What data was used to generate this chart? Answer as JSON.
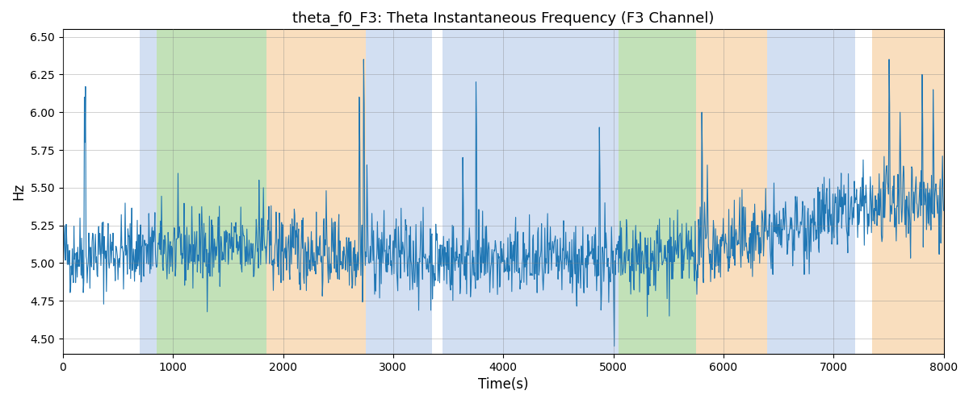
{
  "title": "theta_f0_F3: Theta Instantaneous Frequency (F3 Channel)",
  "xlabel": "Time(s)",
  "ylabel": "Hz",
  "xlim": [
    0,
    8000
  ],
  "ylim": [
    4.4,
    6.55
  ],
  "yticks": [
    4.5,
    4.75,
    5.0,
    5.25,
    5.5,
    5.75,
    6.0,
    6.25,
    6.5
  ],
  "line_color": "#2077b4",
  "line_width": 0.8,
  "background_color": "#ffffff",
  "bands": [
    {
      "start": 700,
      "end": 850,
      "color": "#aec6e8",
      "alpha": 0.55
    },
    {
      "start": 850,
      "end": 1850,
      "color": "#90c97f",
      "alpha": 0.55
    },
    {
      "start": 1850,
      "end": 2750,
      "color": "#f5c48a",
      "alpha": 0.55
    },
    {
      "start": 2750,
      "end": 3350,
      "color": "#aec6e8",
      "alpha": 0.55
    },
    {
      "start": 3450,
      "end": 4950,
      "color": "#aec6e8",
      "alpha": 0.55
    },
    {
      "start": 4950,
      "end": 5050,
      "color": "#aec6e8",
      "alpha": 0.55
    },
    {
      "start": 5050,
      "end": 5750,
      "color": "#90c97f",
      "alpha": 0.55
    },
    {
      "start": 5750,
      "end": 6400,
      "color": "#f5c48a",
      "alpha": 0.55
    },
    {
      "start": 6400,
      "end": 7200,
      "color": "#aec6e8",
      "alpha": 0.55
    },
    {
      "start": 7350,
      "end": 8050,
      "color": "#f5c48a",
      "alpha": 0.55
    }
  ],
  "seed": 42,
  "n_points": 1600,
  "base_freq": 5.05,
  "noise_std": 0.13
}
